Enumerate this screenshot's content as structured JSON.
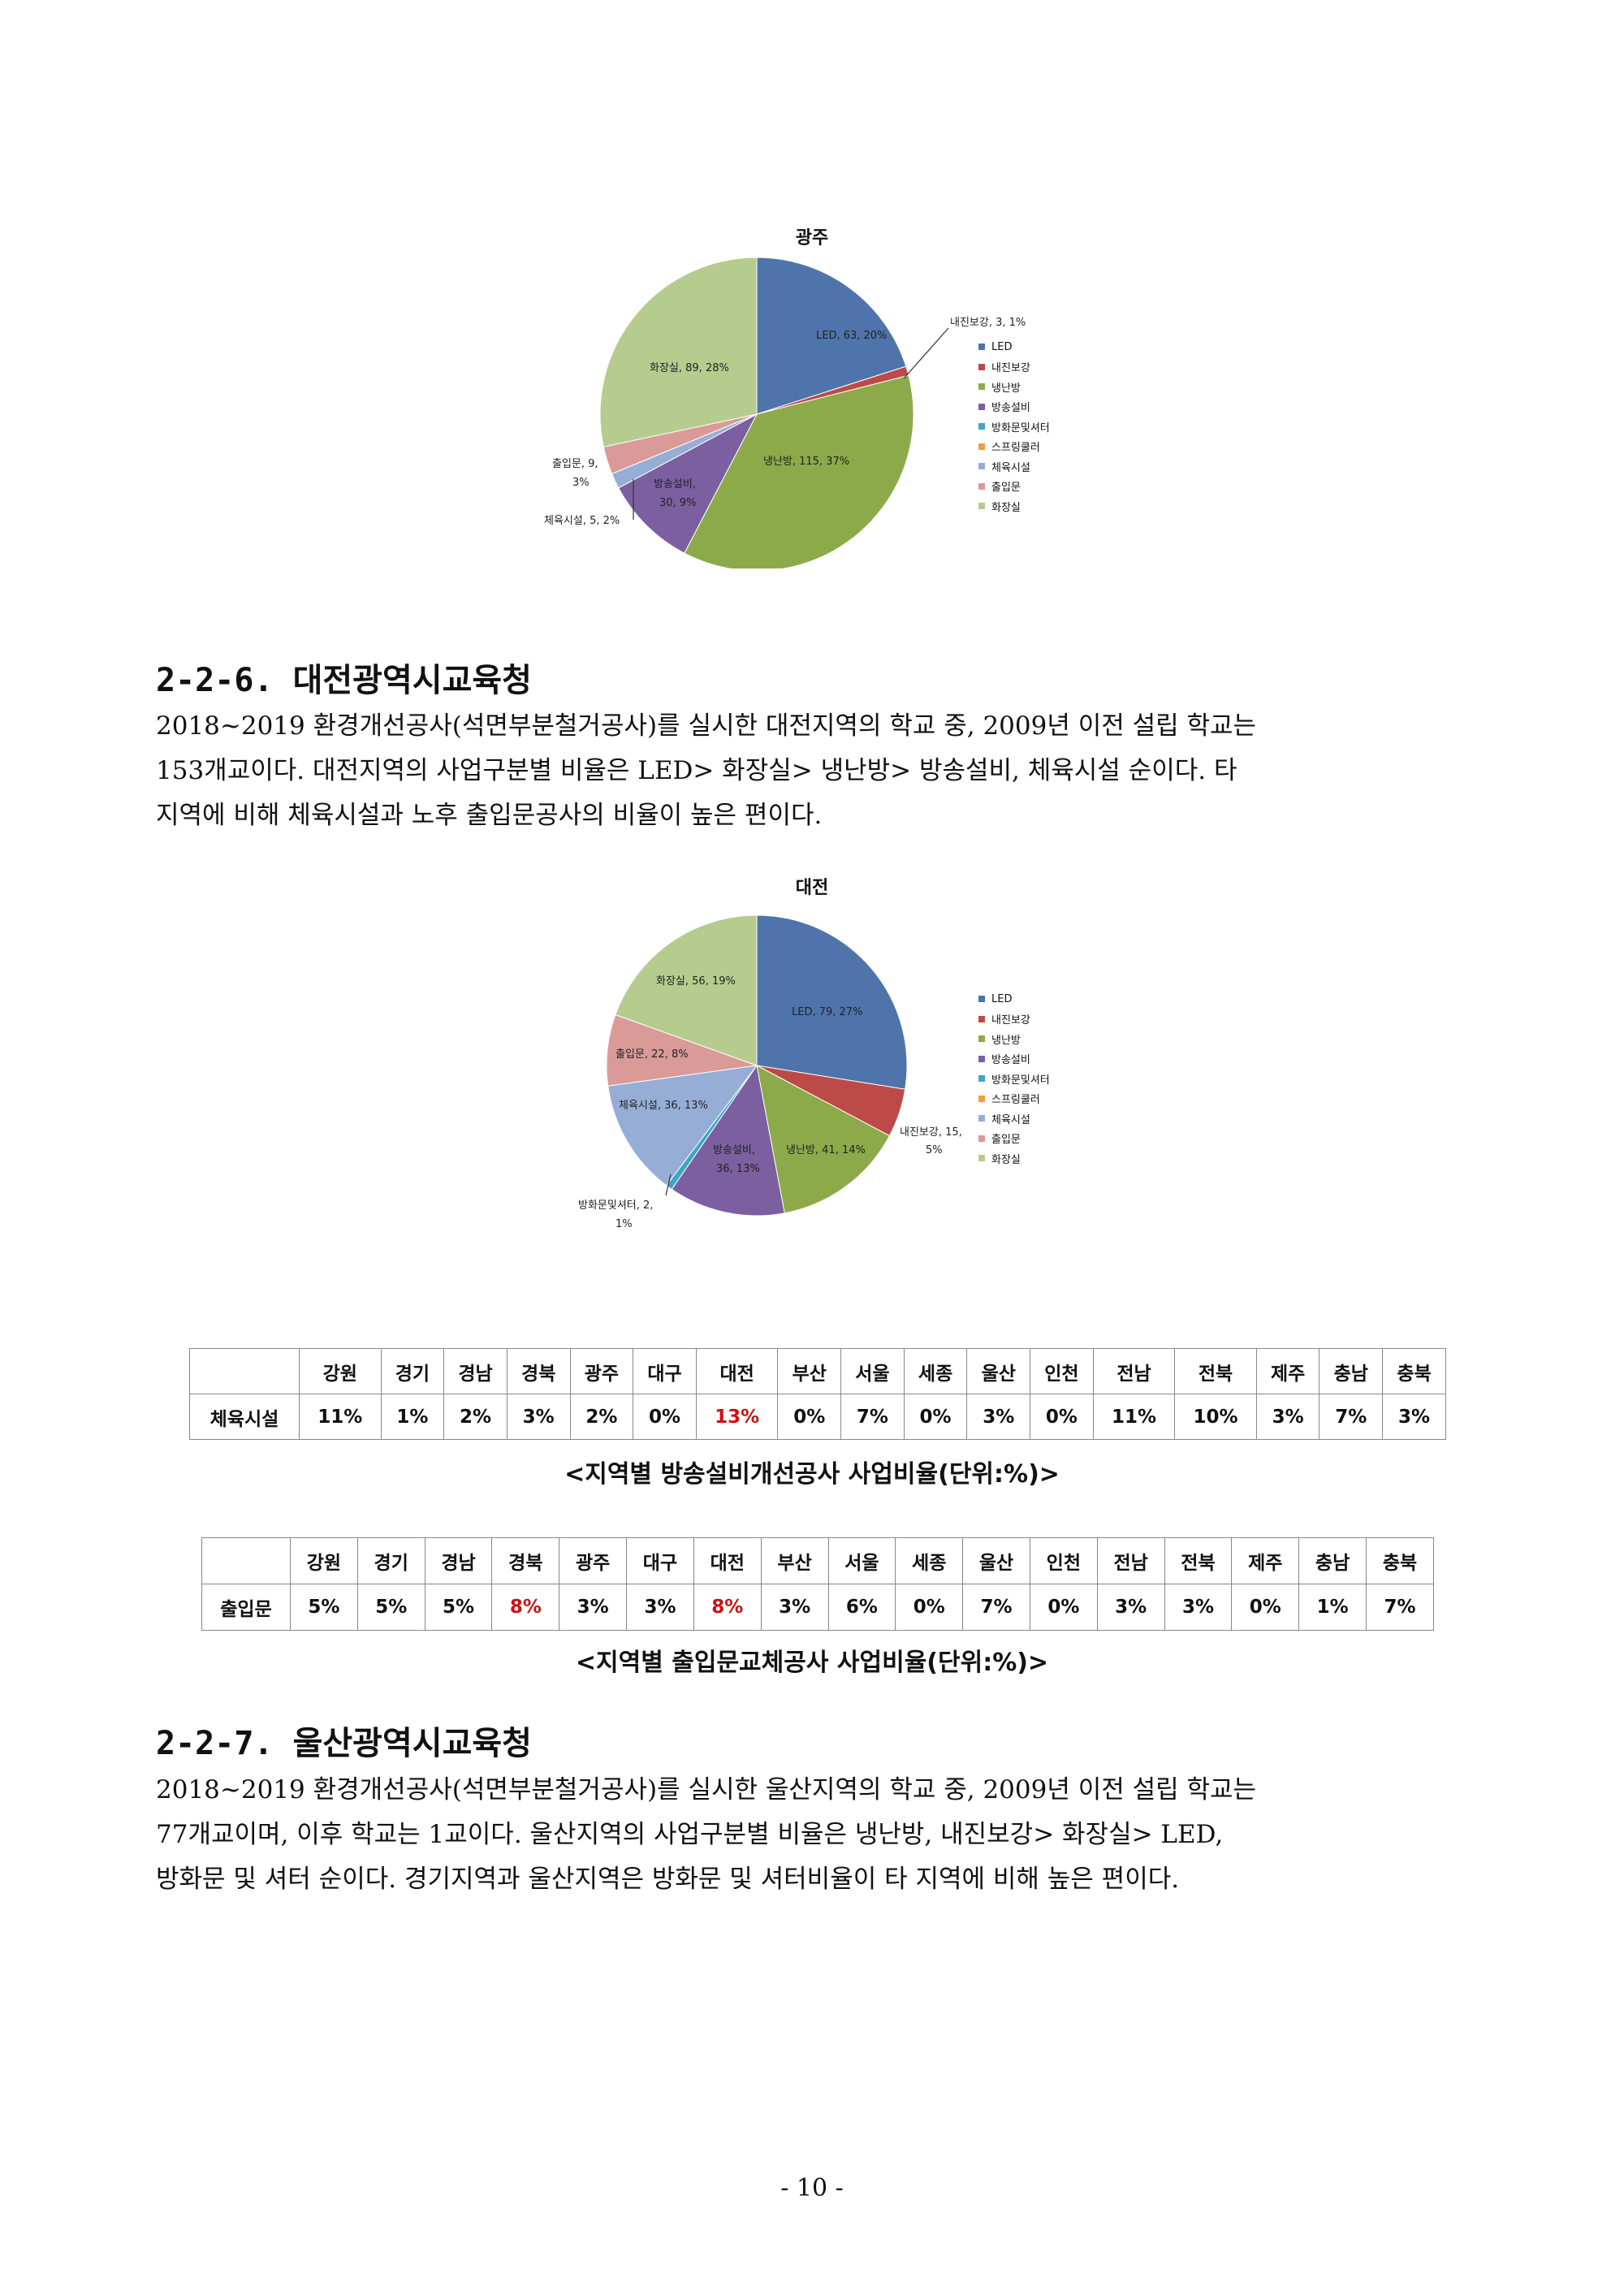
{
  "chart_data": [
    {
      "type": "pie",
      "title": "광주",
      "categories": [
        "LED",
        "내진보강",
        "냉난방",
        "방송설비",
        "방화문및셔터",
        "스프링쿨러",
        "체육시설",
        "출입문",
        "화장실"
      ],
      "values": [
        63,
        3,
        115,
        30,
        0,
        0,
        5,
        9,
        89
      ],
      "percents": [
        20,
        1,
        37,
        9,
        0,
        0,
        2,
        3,
        28
      ],
      "colors": [
        "#4f74ab",
        "#be4a47",
        "#8caa4a",
        "#7b5fa0",
        "#3ba8c4",
        "#f29b48",
        "#96aed6",
        "#d99a98",
        "#b5cc8e"
      ],
      "data_labels": [
        "LED, 63, 20%",
        "내진보강, 3, 1%",
        "냉난방, 115, 37%",
        "방송설비, 30, 9%",
        "",
        "",
        "체육시설, 5, 2%",
        "출입문, 9, 3%",
        "화장실, 89, 28%"
      ],
      "legend": [
        "LED",
        "내진보강",
        "냉난방",
        "방송설비",
        "방화문및셔터",
        "스프링쿨러",
        "체육시설",
        "출입문",
        "화장실"
      ],
      "legend_position": "right"
    },
    {
      "type": "pie",
      "title": "대전",
      "categories": [
        "LED",
        "내진보강",
        "냉난방",
        "방송설비",
        "방화문및셔터",
        "스프링쿨러",
        "체육시설",
        "출입문",
        "화장실"
      ],
      "values": [
        79,
        15,
        41,
        36,
        2,
        0,
        36,
        22,
        56
      ],
      "percents": [
        27,
        5,
        14,
        13,
        1,
        0,
        13,
        8,
        19
      ],
      "colors": [
        "#4f74ab",
        "#be4a47",
        "#8caa4a",
        "#7b5fa0",
        "#3ba8c4",
        "#f29b48",
        "#96aed6",
        "#d99a98",
        "#b5cc8e"
      ],
      "data_labels": [
        "LED, 79, 27%",
        "내진보강, 15, 5%",
        "냉난방, 41, 14%",
        "방송설비, 36, 13%",
        "방화문및셔터, 2, 1%",
        "",
        "체육시설, 36, 13%",
        "출입문, 22, 8%",
        "화장실, 56, 19%"
      ],
      "legend": [
        "LED",
        "내진보강",
        "냉난방",
        "방송설비",
        "방화문및셔터",
        "스프링쿨러",
        "체육시설",
        "출입문",
        "화장실"
      ],
      "legend_position": "right"
    }
  ],
  "pie1": {
    "title": "광주",
    "labels": {
      "led": "LED, 63, 20%",
      "naejin": "내진보강, 3, 1%",
      "naeng": "냉난방, 115, 37%",
      "bangsong_1": "방송설비,",
      "bangsong_2": "30, 9%",
      "cheyuk": "체육시설, 5, 2%",
      "churip_1": "출입문, 9,",
      "churip_2": "3%",
      "hwajang": "화장실, 89, 28%"
    }
  },
  "pie2": {
    "title": "대전",
    "labels": {
      "led": "LED, 79, 27%",
      "naejin_1": "내진보강, 15,",
      "naejin_2": "5%",
      "naeng": "냉난방, 41, 14%",
      "bangsong_1": "방송설비,",
      "bangsong_2": "36, 13%",
      "banghwa_1": "방화문및셔터, 2,",
      "banghwa_2": "1%",
      "cheyuk": "체육시설, 36, 13%",
      "churip": "출입문, 22, 8%",
      "hwajang": "화장실, 56, 19%"
    }
  },
  "legend_labels": [
    "LED",
    "내진보강",
    "냉난방",
    "방송설비",
    "방화문및셔터",
    "스프링쿨러",
    "체육시설",
    "출입문",
    "화장실"
  ],
  "section_226": {
    "heading": "2-2-6. 대전광역시교육청",
    "lines": [
      " 2018~2019 환경개선공사(석면부분철거공사)를 실시한 대전지역의 학교 중, 2009년 이전 설립 학교는",
      "153개교이다.  대전지역의 사업구분별 비율은 LED> 화장실> 냉난방> 방송설비, 체육시설 순이다. 타",
      "지역에 비해 체육시설과 노후 출입문공사의 비율이 높은 편이다."
    ]
  },
  "regions": [
    "강원",
    "경기",
    "경남",
    "경북",
    "광주",
    "대구",
    "대전",
    "부산",
    "서울",
    "세종",
    "울산",
    "인천",
    "전남",
    "전북",
    "제주",
    "충남",
    "충북"
  ],
  "table1": {
    "row_label": "체육시설",
    "values": [
      "11%",
      "1%",
      "2%",
      "3%",
      "2%",
      "0%",
      "13%",
      "0%",
      "7%",
      "0%",
      "3%",
      "0%",
      "11%",
      "10%",
      "3%",
      "7%",
      "3%"
    ],
    "caption": "<지역별 방송설비개선공사 사업비율(단위:%)>"
  },
  "table2": {
    "row_label": "출입문",
    "values": [
      "5%",
      "5%",
      "5%",
      "8%",
      "3%",
      "3%",
      "8%",
      "3%",
      "6%",
      "0%",
      "7%",
      "0%",
      "3%",
      "3%",
      "0%",
      "1%",
      "7%"
    ],
    "caption": "<지역별 출입문교체공사 사업비율(단위:%)>"
  },
  "section_227": {
    "heading": "2-2-7. 울산광역시교육청",
    "lines": [
      " 2018~2019 환경개선공사(석면부분철거공사)를 실시한 울산지역의 학교 중, 2009년 이전 설립 학교는",
      "77개교이며, 이후 학교는 1교이다.  울산지역의 사업구분별 비율은 냉난방, 내진보강> 화장실> LED,",
      "방화문 및 셔터 순이다. 경기지역과 울산지역은 방화문 및 셔터비율이 타 지역에 비해 높은 편이다."
    ]
  },
  "page_number": "- 10 -"
}
